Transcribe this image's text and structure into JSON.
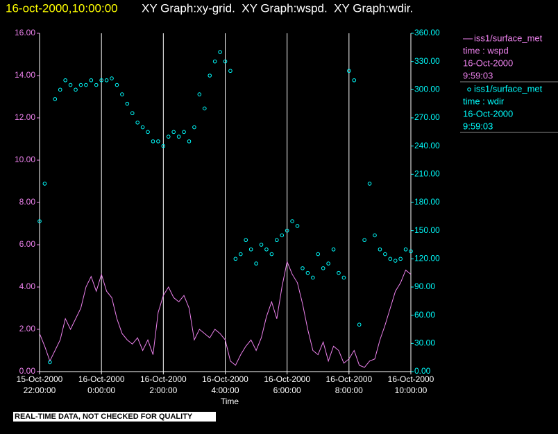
{
  "chart_data": {
    "type": "line-scatter",
    "title": "16-oct-2000,10:00:00",
    "subtitle": "XY Graph:xy-grid.  XY Graph:wspd.  XY Graph:wdir.",
    "xlabel": "Time",
    "footer": "REAL-TIME DATA, NOT CHECKED FOR QUALITY",
    "grid": true,
    "xlim": [
      "2000-10-15T22:00:00",
      "2000-10-16T10:00:00"
    ],
    "xticks": [
      {
        "value": "2000-10-15T22:00:00",
        "label": "15-Oct-2000 22:00:00"
      },
      {
        "value": "2000-10-16T00:00:00",
        "label": "16-Oct-2000 0:00:00"
      },
      {
        "value": "2000-10-16T02:00:00",
        "label": "16-Oct-2000 2:00:00"
      },
      {
        "value": "2000-10-16T04:00:00",
        "label": "16-Oct-2000 4:00:00"
      },
      {
        "value": "2000-10-16T06:00:00",
        "label": "16-Oct-2000 6:00:00"
      },
      {
        "value": "2000-10-16T08:00:00",
        "label": "16-Oct-2000 8:00:00"
      },
      {
        "value": "2000-10-16T10:00:00",
        "label": "16-Oct-2000 10:00:00"
      }
    ],
    "ylim": [
      0,
      16
    ],
    "yticks": [
      {
        "value": 0,
        "label": "0.00"
      },
      {
        "value": 2,
        "label": "2.00"
      },
      {
        "value": 4,
        "label": "4.00"
      },
      {
        "value": 6,
        "label": "6.00"
      },
      {
        "value": 8,
        "label": "8.00"
      },
      {
        "value": 10,
        "label": "10.00"
      },
      {
        "value": 12,
        "label": "12.00"
      },
      {
        "value": 14,
        "label": "14.00"
      },
      {
        "value": 16,
        "label": "16.00"
      }
    ],
    "y2lim": [
      0,
      360
    ],
    "y2ticks": [
      {
        "value": 0,
        "label": "0.00"
      },
      {
        "value": 30,
        "label": "30.00"
      },
      {
        "value": 60,
        "label": "60.00"
      },
      {
        "value": 90,
        "label": "90.00"
      },
      {
        "value": 120,
        "label": "120.00"
      },
      {
        "value": 150,
        "label": "150.00"
      },
      {
        "value": 180,
        "label": "180.00"
      },
      {
        "value": 210,
        "label": "210.00"
      },
      {
        "value": 240,
        "label": "240.00"
      },
      {
        "value": 270,
        "label": "270.00"
      },
      {
        "value": 300,
        "label": "300.00"
      },
      {
        "value": 330,
        "label": "330.00"
      },
      {
        "value": 360,
        "label": "360.00"
      }
    ],
    "x": [
      "2000-10-15T22:00:00",
      "2000-10-15T22:10:00",
      "2000-10-15T22:20:00",
      "2000-10-15T22:30:00",
      "2000-10-15T22:40:00",
      "2000-10-15T22:50:00",
      "2000-10-15T23:00:00",
      "2000-10-15T23:10:00",
      "2000-10-15T23:20:00",
      "2000-10-15T23:30:00",
      "2000-10-15T23:40:00",
      "2000-10-15T23:50:00",
      "2000-10-16T00:00:00",
      "2000-10-16T00:10:00",
      "2000-10-16T00:20:00",
      "2000-10-16T00:30:00",
      "2000-10-16T00:40:00",
      "2000-10-16T00:50:00",
      "2000-10-16T01:00:00",
      "2000-10-16T01:10:00",
      "2000-10-16T01:20:00",
      "2000-10-16T01:30:00",
      "2000-10-16T01:40:00",
      "2000-10-16T01:50:00",
      "2000-10-16T02:00:00",
      "2000-10-16T02:10:00",
      "2000-10-16T02:20:00",
      "2000-10-16T02:30:00",
      "2000-10-16T02:40:00",
      "2000-10-16T02:50:00",
      "2000-10-16T03:00:00",
      "2000-10-16T03:10:00",
      "2000-10-16T03:20:00",
      "2000-10-16T03:30:00",
      "2000-10-16T03:40:00",
      "2000-10-16T03:50:00",
      "2000-10-16T04:00:00",
      "2000-10-16T04:10:00",
      "2000-10-16T04:20:00",
      "2000-10-16T04:30:00",
      "2000-10-16T04:40:00",
      "2000-10-16T04:50:00",
      "2000-10-16T05:00:00",
      "2000-10-16T05:10:00",
      "2000-10-16T05:20:00",
      "2000-10-16T05:30:00",
      "2000-10-16T05:40:00",
      "2000-10-16T05:50:00",
      "2000-10-16T06:00:00",
      "2000-10-16T06:10:00",
      "2000-10-16T06:20:00",
      "2000-10-16T06:30:00",
      "2000-10-16T06:40:00",
      "2000-10-16T06:50:00",
      "2000-10-16T07:00:00",
      "2000-10-16T07:10:00",
      "2000-10-16T07:20:00",
      "2000-10-16T07:30:00",
      "2000-10-16T07:40:00",
      "2000-10-16T07:50:00",
      "2000-10-16T08:00:00",
      "2000-10-16T08:10:00",
      "2000-10-16T08:20:00",
      "2000-10-16T08:30:00",
      "2000-10-16T08:40:00",
      "2000-10-16T08:50:00",
      "2000-10-16T09:00:00",
      "2000-10-16T09:10:00",
      "2000-10-16T09:20:00",
      "2000-10-16T09:30:00",
      "2000-10-16T09:40:00",
      "2000-10-16T09:50:00",
      "2000-10-16T10:00:00"
    ],
    "series": [
      {
        "name": "iss1/surface_met",
        "legend_lines": [
          "time : wspd",
          "16-Oct-2000",
          "9:59:03"
        ],
        "mark": "line",
        "axis": "y",
        "color": "#ee82ee",
        "values": [
          1.8,
          1.2,
          0.5,
          1.0,
          1.5,
          2.5,
          2.0,
          2.5,
          3.0,
          4.0,
          4.5,
          3.8,
          4.6,
          3.8,
          3.5,
          2.5,
          1.8,
          1.5,
          1.3,
          1.6,
          1.0,
          1.5,
          0.8,
          2.8,
          3.6,
          4.0,
          3.5,
          3.3,
          3.6,
          3.0,
          1.5,
          2.0,
          1.8,
          1.6,
          2.0,
          1.8,
          1.5,
          0.5,
          0.3,
          0.8,
          1.2,
          1.5,
          1.0,
          1.6,
          2.6,
          3.3,
          2.5,
          4.0,
          5.2,
          4.6,
          4.2,
          3.2,
          2.0,
          1.0,
          0.8,
          1.4,
          0.5,
          1.2,
          1.0,
          0.4,
          0.6,
          1.0,
          0.3,
          0.2,
          0.5,
          0.6,
          1.5,
          2.2,
          3.0,
          3.8,
          4.2,
          4.8,
          4.6
        ]
      },
      {
        "name": "iss1/surface_met",
        "legend_lines": [
          "time : wdir",
          "16-Oct-2000",
          "9:59:03"
        ],
        "mark": "scatter",
        "axis": "y2",
        "color": "#00ffff",
        "values": [
          160,
          200,
          10,
          290,
          300,
          310,
          305,
          300,
          305,
          305,
          310,
          305,
          310,
          310,
          312,
          305,
          295,
          285,
          275,
          265,
          260,
          255,
          245,
          245,
          240,
          250,
          255,
          250,
          255,
          245,
          260,
          295,
          280,
          315,
          330,
          340,
          330,
          320,
          120,
          125,
          140,
          130,
          115,
          135,
          130,
          125,
          140,
          145,
          150,
          160,
          155,
          110,
          105,
          100,
          125,
          110,
          115,
          130,
          105,
          100,
          320,
          310,
          50,
          140,
          200,
          145,
          130,
          125,
          120,
          118,
          120,
          130,
          128
        ]
      }
    ]
  }
}
